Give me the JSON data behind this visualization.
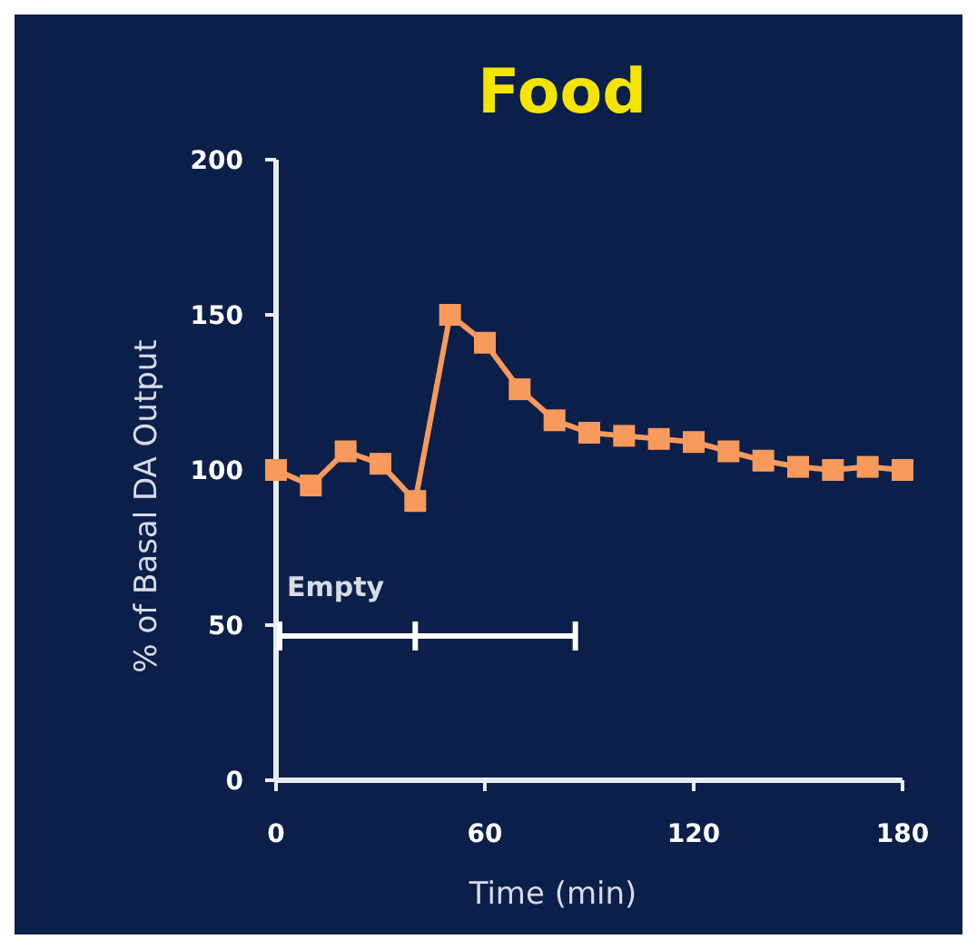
{
  "chart_data": {
    "type": "line",
    "title": "Food",
    "xlabel": "Time (min)",
    "ylabel": "% of Basal DA Output",
    "x": [
      0,
      10,
      20,
      30,
      40,
      50,
      60,
      70,
      80,
      90,
      100,
      110,
      120,
      130,
      140,
      150,
      160,
      170,
      180
    ],
    "series": [
      {
        "color": "#f79a5c",
        "values": [
          100,
          95,
          106,
          102,
          90,
          150,
          141,
          126,
          116,
          112,
          111,
          110,
          109,
          106,
          103,
          101,
          100,
          101,
          100
        ]
      }
    ],
    "xlim": [
      0,
      180
    ],
    "xticks": [
      0,
      60,
      120,
      180
    ],
    "ylim": [
      0,
      200
    ],
    "yticks": [
      0,
      50,
      100,
      150,
      200
    ],
    "marker": "square",
    "grid": false,
    "annotations": [
      "Empty"
    ]
  }
}
